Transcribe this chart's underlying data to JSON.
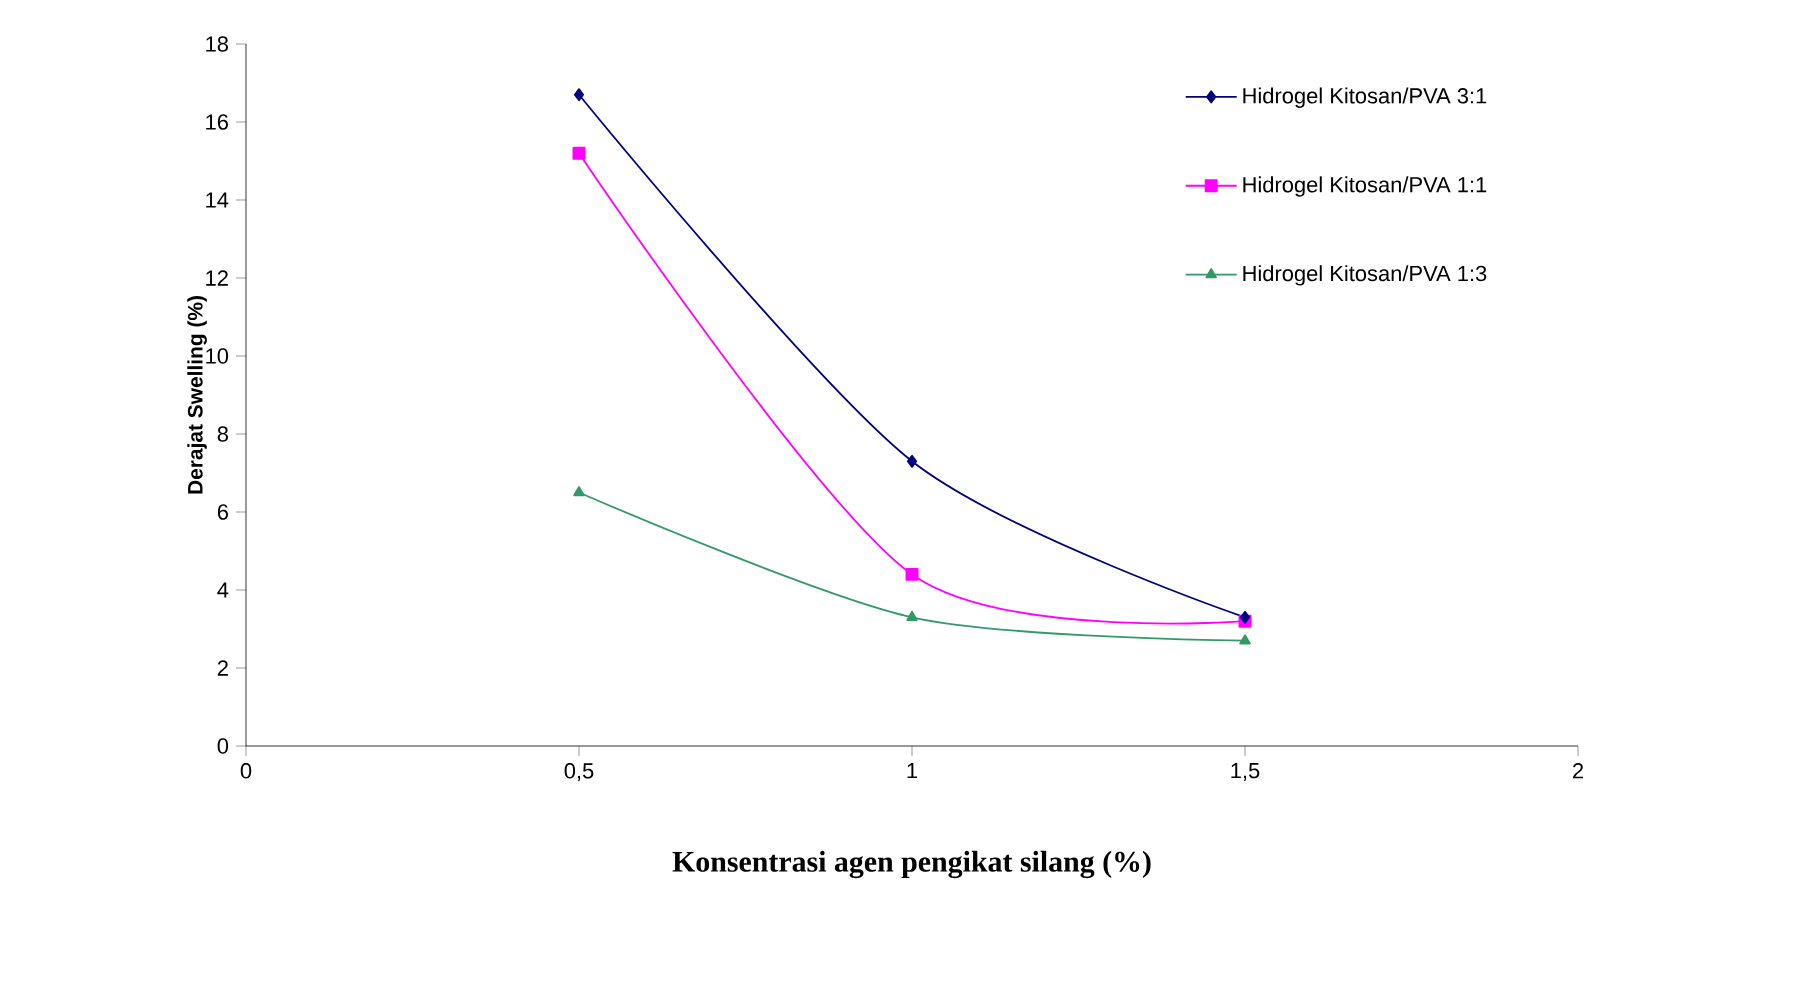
{
  "chart_data": {
    "type": "line",
    "xlabel": "Konsentrasi agen pengikat silang (%)",
    "ylabel": "Derajat Swelling (%)",
    "x": [
      0.5,
      1,
      1.5
    ],
    "series": [
      {
        "name": "Hidrogel Kitosan/PVA 3:1",
        "color": "#000080",
        "marker": "diamond",
        "values": [
          16.7,
          7.3,
          3.3
        ]
      },
      {
        "name": "Hidrogel Kitosan/PVA 1:1",
        "color": "#ff00ff",
        "marker": "square",
        "values": [
          15.2,
          4.4,
          3.2
        ]
      },
      {
        "name": "Hidrogel Kitosan/PVA 1:3",
        "color": "#339966",
        "marker": "triangle",
        "values": [
          6.5,
          3.3,
          2.7
        ]
      }
    ],
    "xlim": [
      0,
      2
    ],
    "xticks": [
      0,
      {
        "value": 0.5,
        "label": "0,5"
      },
      1,
      {
        "value": 1.5,
        "label": "1,5"
      },
      2
    ],
    "ylim": [
      0,
      18
    ],
    "yticks": [
      0,
      2,
      4,
      6,
      8,
      10,
      12,
      14,
      16,
      18
    ],
    "grid": false,
    "legend": "top right",
    "line_style": "solid"
  }
}
